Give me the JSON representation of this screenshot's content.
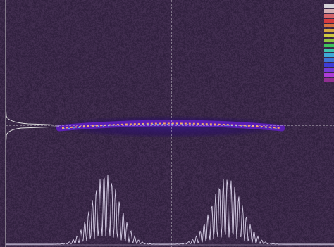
{
  "view": {
    "background": "#3a2a48",
    "beam_color": "#ffcc88",
    "profile_color": "#d8d0e8",
    "crosshair_color": "#e8e8e8"
  },
  "colorbar": {
    "colors": [
      "#f0f0f0",
      "#f0c8c8",
      "#f07070",
      "#f04040",
      "#f08040",
      "#f0c040",
      "#e8e840",
      "#a0e040",
      "#40e060",
      "#40e0c0",
      "#40c0f0",
      "#4080f0",
      "#4040f0",
      "#8040f0",
      "#c040f0",
      "#a030a0"
    ]
  }
}
